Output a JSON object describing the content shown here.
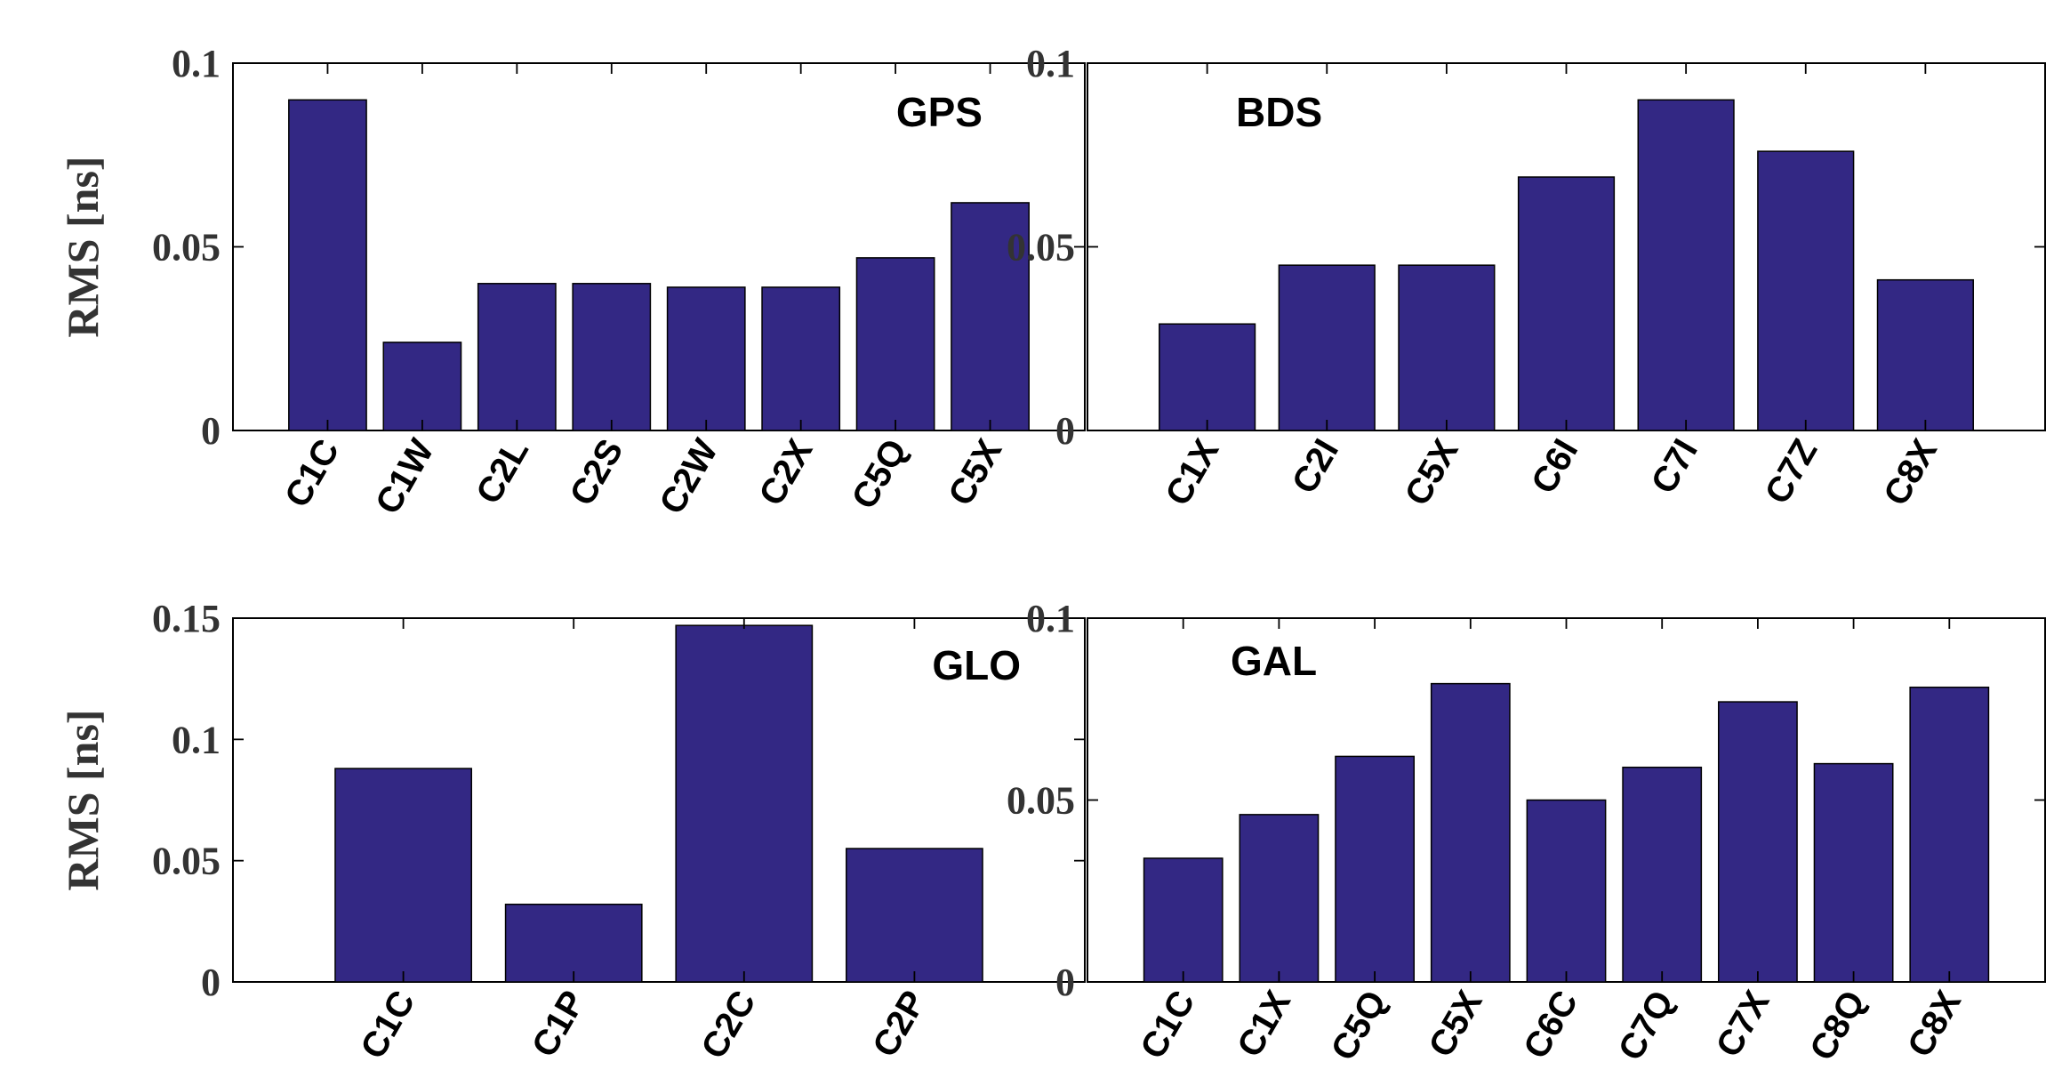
{
  "chart_data": [
    {
      "type": "bar",
      "title": "GPS",
      "title_position": "top-right",
      "ylabel": "RMS [ns]",
      "xlabel": "",
      "categories": [
        "C1C",
        "C1W",
        "C2L",
        "C2S",
        "C2W",
        "C2X",
        "C5Q",
        "C5X"
      ],
      "values": [
        0.09,
        0.024,
        0.04,
        0.04,
        0.039,
        0.039,
        0.047,
        0.062
      ],
      "ylim": [
        0,
        0.1
      ],
      "yticks": [
        0,
        0.05,
        0.1
      ],
      "ytick_labels": [
        "0",
        "0.05",
        "0.1"
      ],
      "color": "#332884"
    },
    {
      "type": "bar",
      "title": "BDS",
      "title_position": "top-left",
      "ylabel": "",
      "xlabel": "",
      "categories": [
        "C1X",
        "C2I",
        "C5X",
        "C6I",
        "C7I",
        "C7Z",
        "C8X"
      ],
      "values": [
        0.029,
        0.045,
        0.045,
        0.069,
        0.09,
        0.076,
        0.041
      ],
      "ylim": [
        0,
        0.1
      ],
      "yticks": [
        0,
        0.05,
        0.1
      ],
      "ytick_labels": [
        "0",
        "0.05",
        "0.1"
      ],
      "color": "#332884"
    },
    {
      "type": "bar",
      "title": "GLO",
      "title_position": "top-right",
      "ylabel": "RMS [ns]",
      "xlabel": "",
      "categories": [
        "C1C",
        "C1P",
        "C2C",
        "C2P"
      ],
      "values": [
        0.088,
        0.032,
        0.147,
        0.055
      ],
      "ylim": [
        0,
        0.15
      ],
      "yticks": [
        0,
        0.05,
        0.1,
        0.15
      ],
      "ytick_labels": [
        "0",
        "0.05",
        "0.1",
        "0.15"
      ],
      "color": "#332884"
    },
    {
      "type": "bar",
      "title": "GAL",
      "title_position": "top-left",
      "ylabel": "",
      "xlabel": "",
      "categories": [
        "C1C",
        "C1X",
        "C5Q",
        "C5X",
        "C6C",
        "C7Q",
        "C7X",
        "C8Q",
        "C8X"
      ],
      "values": [
        0.034,
        0.046,
        0.062,
        0.082,
        0.05,
        0.059,
        0.077,
        0.06,
        0.081
      ],
      "ylim": [
        0,
        0.1
      ],
      "yticks": [
        0,
        0.05,
        0.1
      ],
      "ytick_labels": [
        "0",
        "0.05",
        "0.1"
      ],
      "color": "#332884"
    }
  ]
}
